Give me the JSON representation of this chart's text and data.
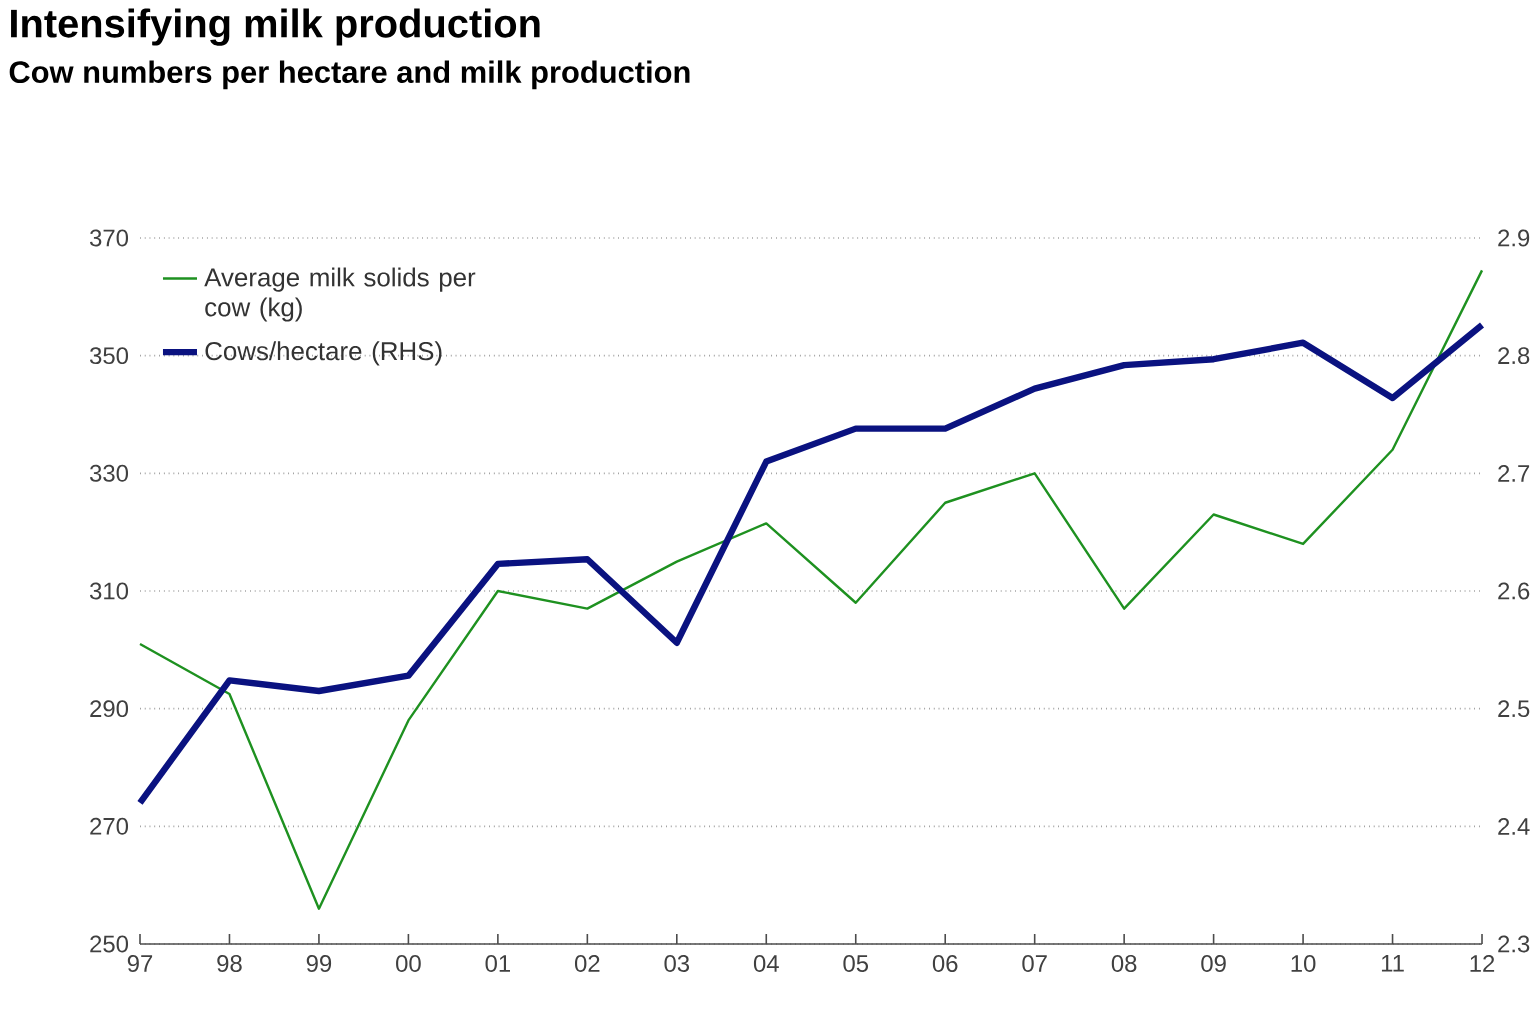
{
  "chart_data": {
    "type": "line",
    "title": "Intensifying milk production",
    "subtitle": "Cow numbers per hectare and milk production",
    "categories": [
      "97",
      "98",
      "99",
      "00",
      "01",
      "02",
      "03",
      "04",
      "05",
      "06",
      "07",
      "08",
      "09",
      "10",
      "11",
      "12"
    ],
    "series": [
      {
        "name": "Average milk solids per cow (kg)",
        "color": "#1e9120",
        "values": [
          301,
          292.5,
          256,
          288,
          310,
          307,
          315,
          321.5,
          308,
          325,
          330,
          307,
          323,
          318,
          334,
          364.5
        ]
      },
      {
        "name": "Cows/hectare (RHS)",
        "color": "#0a1280",
        "axis": "y2",
        "values": [
          2.42,
          2.524,
          2.515,
          2.528,
          2.623,
          2.627,
          2.556,
          2.71,
          2.738,
          2.738,
          2.772,
          2.792,
          2.797,
          2.811,
          2.764,
          2.826
        ]
      }
    ],
    "ylim": [
      250,
      370
    ],
    "yticks": [
      250,
      270,
      290,
      310,
      330,
      350,
      370
    ],
    "y2lim": [
      2.3,
      2.9
    ],
    "y2ticks": [
      2.3,
      2.4,
      2.5,
      2.6,
      2.7,
      2.8,
      2.9
    ],
    "grid": "y",
    "legend": "top left",
    "marker": "none",
    "line_style": "solid"
  }
}
